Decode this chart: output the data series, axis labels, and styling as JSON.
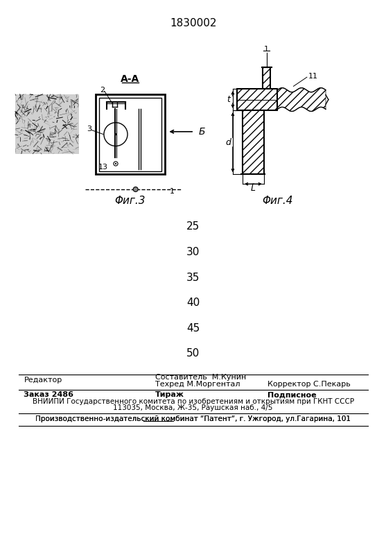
{
  "patent_number": "1830002",
  "fig3_label": "Φиг.3",
  "fig4_label": "Φиг.4",
  "section_label": "А-А",
  "numbers": [
    "25",
    "30",
    "35",
    "40",
    "45",
    "50"
  ],
  "footer_line1_left": "Редактор",
  "footer_line1_center": "Составитель  М.Кунин",
  "footer_line2_center": "Техред М.Моргентал",
  "footer_line2_right": "Корректор С.Пекарь",
  "footer_order": "Заказ 2486",
  "footer_tirazh": "Тираж",
  "footer_podpisnoe": "Подписное",
  "footer_vniip": "ВНИИПИ Государственного комитета по изобретениям и открытиям при ГКНТ СССР",
  "footer_address": "113035, Москва, Ж-35, Раушская наб., 4/5",
  "footer_publisher": "Производственно-издательский комбинат “Патент”, г. Ужгород, ул.Гагарина, 101",
  "bg_color": "#ffffff",
  "line_color": "#000000"
}
